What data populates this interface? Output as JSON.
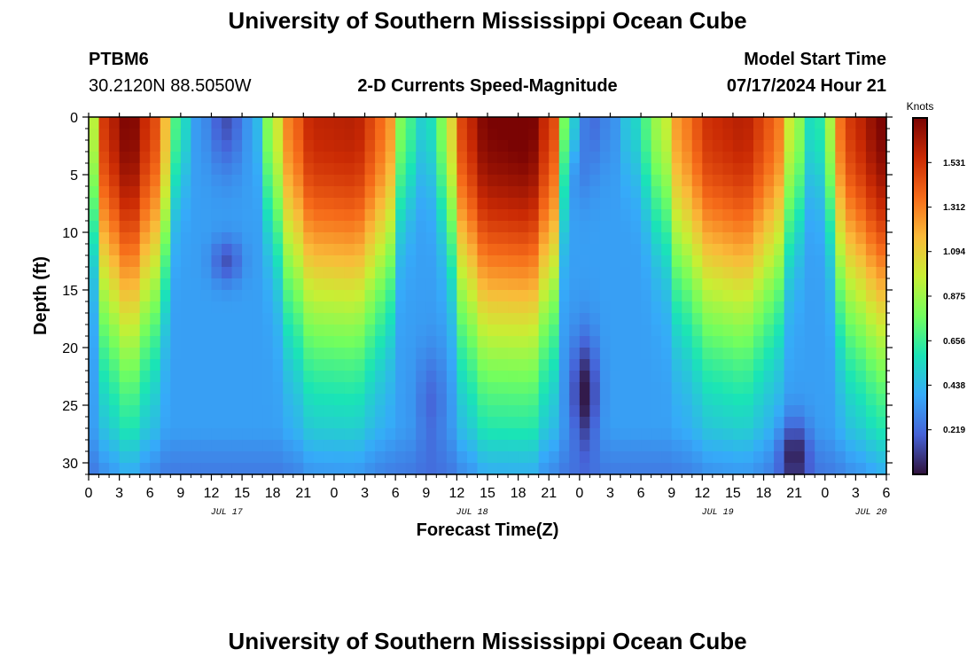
{
  "header": {
    "title": "University of Southern Mississippi Ocean Cube",
    "station_id": "PTBM6",
    "station_coords": "30.2120N  88.5050W",
    "subtitle": "2-D Currents Speed-Magnitude",
    "model_start_label": "Model Start Time",
    "model_start_value": "07/17/2024 Hour 21"
  },
  "footer": {
    "title": "University of Southern Mississippi Ocean Cube"
  },
  "chart_data": {
    "type": "heatmap",
    "title": "2-D Currents Speed-Magnitude",
    "xlabel": "Forecast Time(Z)",
    "ylabel": "Depth (ft)",
    "x_tick_labels": [
      "0",
      "3",
      "6",
      "9",
      "12",
      "15",
      "18",
      "21",
      "0",
      "3",
      "6",
      "9",
      "12",
      "15",
      "18",
      "21",
      "0",
      "3",
      "6",
      "9",
      "12",
      "15",
      "18",
      "21",
      "0",
      "3",
      "6"
    ],
    "x_range_hours": [
      0,
      78
    ],
    "date_labels": [
      {
        "text": "JUL 17",
        "hour": 13.5
      },
      {
        "text": "JUL 18",
        "hour": 37.5
      },
      {
        "text": "JUL 19",
        "hour": 61.5
      },
      {
        "text": "JUL 20",
        "hour": 76.5
      }
    ],
    "y_tick_labels": [
      "0",
      "5",
      "10",
      "15",
      "20",
      "25",
      "30"
    ],
    "y_ticks": [
      0,
      5,
      10,
      15,
      20,
      25,
      30
    ],
    "y_range_ft": [
      0,
      31
    ],
    "colorbar": {
      "label": "Knots",
      "tick_labels": [
        "0.219",
        "0.438",
        "0.656",
        "0.875",
        "1.094",
        "1.312",
        "1.531"
      ],
      "ticks": [
        0.219,
        0.438,
        0.656,
        0.875,
        1.094,
        1.312,
        1.531
      ],
      "range": [
        0,
        1.75
      ],
      "colors": [
        "#30123b",
        "#4662d7",
        "#36aaf9",
        "#1ae4b6",
        "#72fe5e",
        "#c8ef34",
        "#faba39",
        "#f66b19",
        "#ca2a04",
        "#7a0403"
      ]
    },
    "surface_speed_keyframes": [
      [
        0,
        0.6
      ],
      [
        1.2,
        1.5
      ],
      [
        4,
        1.75
      ],
      [
        6.5,
        1.45
      ],
      [
        9,
        0.6
      ],
      [
        10.5,
        0.35
      ],
      [
        13.5,
        0.15
      ],
      [
        16,
        0.35
      ],
      [
        18,
        0.9
      ],
      [
        19.5,
        1.3
      ],
      [
        22,
        1.58
      ],
      [
        26,
        1.6
      ],
      [
        29,
        1.35
      ],
      [
        31,
        0.7
      ],
      [
        33,
        0.48
      ],
      [
        34.5,
        0.8
      ],
      [
        37,
        1.55
      ],
      [
        39,
        1.75
      ],
      [
        43,
        1.78
      ],
      [
        45.5,
        1.45
      ],
      [
        47,
        0.55
      ],
      [
        49,
        0.22
      ],
      [
        51,
        0.3
      ],
      [
        53,
        0.5
      ],
      [
        56,
        0.9
      ],
      [
        58,
        1.3
      ],
      [
        61,
        1.55
      ],
      [
        64,
        1.6
      ],
      [
        67,
        1.4
      ],
      [
        69,
        0.9
      ],
      [
        71,
        0.5
      ],
      [
        72.5,
        0.9
      ],
      [
        74,
        1.5
      ],
      [
        78,
        1.75
      ]
    ],
    "deep_low_spots": [
      {
        "hour": 48.5,
        "depth_ft": 24,
        "sigma_hours": 1.3,
        "sigma_ft": 5,
        "amount": 0.35
      },
      {
        "hour": 69,
        "depth_ft": 29,
        "sigma_hours": 1.5,
        "sigma_ft": 3,
        "amount": 0.28
      },
      {
        "hour": 13.5,
        "depth_ft": 12.5,
        "sigma_hours": 1.5,
        "sigma_ft": 2,
        "amount": 0.2
      },
      {
        "hour": 33.5,
        "depth_ft": 25,
        "sigma_hours": 1.5,
        "sigma_ft": 5,
        "amount": 0.15
      },
      {
        "hour": 47.5,
        "depth_ft": 5,
        "sigma_hours": 1.5,
        "sigma_ft": 3,
        "amount": 0.08
      }
    ]
  }
}
